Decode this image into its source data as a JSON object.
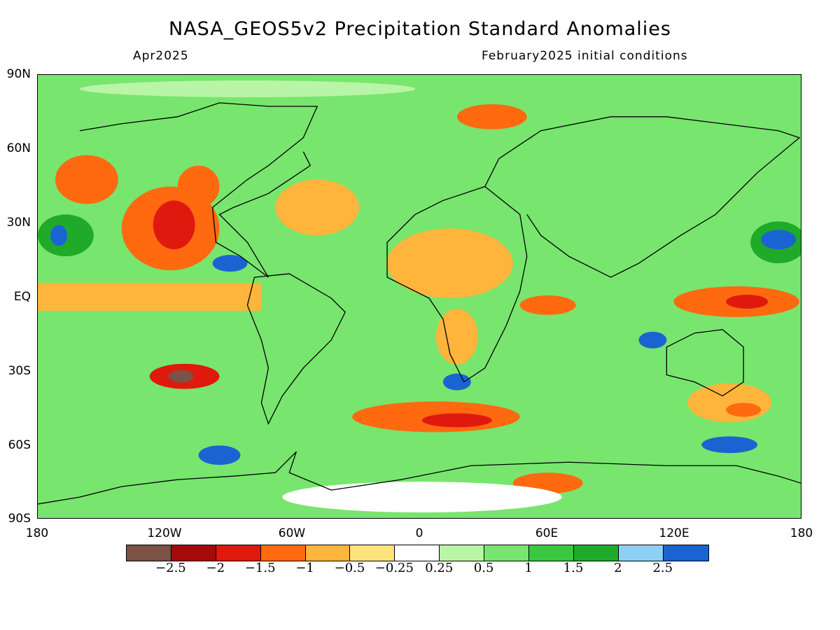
{
  "header": {
    "title": "NASA_GEOS5v2 Precipitation Standard Anomalies",
    "valid_month": "Apr2025",
    "init": "February2025 initial conditions"
  },
  "axes": {
    "lat_labels": [
      "90N",
      "60N",
      "30N",
      "EQ",
      "30S",
      "60S",
      "90S"
    ],
    "lon_labels": [
      "180",
      "120W",
      "60W",
      "0",
      "60E",
      "120E",
      "180"
    ]
  },
  "colorbar": {
    "colors": [
      "#7a5246",
      "#a50a0a",
      "#e0190f",
      "#ff6a10",
      "#ffb43c",
      "#ffe37a",
      "#ffffff",
      "#b9f5a6",
      "#78e56e",
      "#39c840",
      "#20aa2a",
      "#8ecff5",
      "#1a64d2"
    ],
    "labels": [
      "−2.5",
      "−2",
      "−1.5",
      "−1",
      "−0.5",
      "−0.25",
      "0.25",
      "0.5",
      "1",
      "1.5",
      "2",
      "2.5"
    ]
  },
  "map": {
    "extent": {
      "lon": [
        -180,
        180
      ],
      "lat": [
        -90,
        90
      ]
    },
    "background_color": "#78e56e",
    "coast_color": "#000000"
  }
}
